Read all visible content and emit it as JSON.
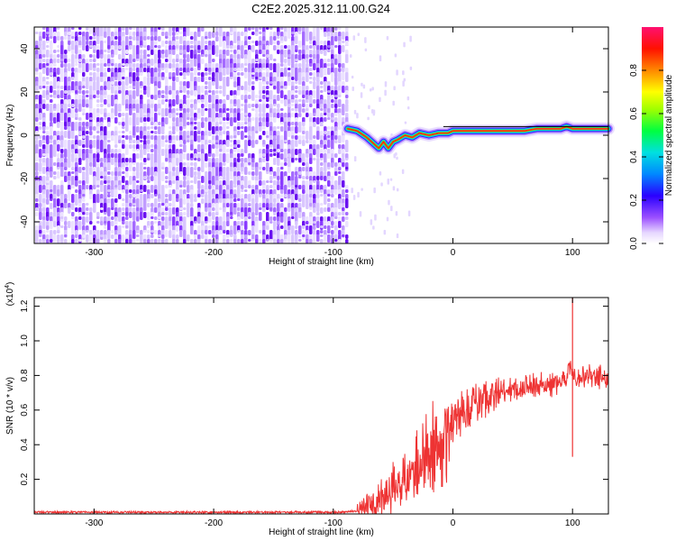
{
  "figure_title": "C2E2.2025.312.11.00.G24",
  "chart_data": [
    {
      "type": "heatmap",
      "title": "C2E2.2025.312.11.00.G24",
      "xlabel": "Height of straight line (km)",
      "ylabel": "Frequency (Hz)",
      "xlim": [
        -350,
        130
      ],
      "ylim": [
        -50,
        50
      ],
      "xticks": [
        -300,
        -200,
        -100,
        0,
        100
      ],
      "yticks": [
        -40,
        -20,
        0,
        20,
        40
      ],
      "noise_region": {
        "x_from": -350,
        "x_to": -88,
        "description_level": "random"
      },
      "signal_track": {
        "x": [
          -88,
          -80,
          -72,
          -66,
          -62,
          -58,
          -54,
          -50,
          -46,
          -40,
          -34,
          -28,
          -20,
          -12,
          -4,
          0,
          10,
          20,
          30,
          40,
          50,
          60,
          70,
          80,
          90,
          95,
          100,
          110,
          120,
          130
        ],
        "y": [
          3,
          2,
          -1,
          -4,
          -6,
          -3,
          -6,
          -3,
          -2,
          0,
          -1,
          1,
          0,
          1,
          1,
          2,
          2,
          2,
          2,
          2,
          2,
          2,
          3,
          3,
          3,
          4,
          3,
          3,
          3,
          3
        ]
      },
      "colorbar": {
        "label": "Normalized spectral amplitude",
        "range": [
          0,
          1
        ],
        "ticks": [
          0.0,
          0.2,
          0.4,
          0.6,
          0.8
        ],
        "tick_labels": [
          "0.0",
          "0.2",
          "0.4",
          "0.6",
          "0.8"
        ]
      }
    },
    {
      "type": "line",
      "xlabel": "Height of straight line (km)",
      "ylabel": "SNR (10 * v/v)",
      "scale_label": "(x10",
      "scale_exponent": "4",
      "scale_suffix": ")",
      "xlim": [
        -350,
        130
      ],
      "ylim": [
        0,
        1.25
      ],
      "xticks": [
        -300,
        -200,
        -100,
        0,
        100
      ],
      "yticks": [
        0.2,
        0.4,
        0.6,
        0.8,
        1.0,
        1.2
      ],
      "ytick_labels": [
        "0.2",
        "0.4",
        "0.6",
        "0.8",
        "1.0",
        "1.2"
      ],
      "color": "#ee3333",
      "series": [
        {
          "name": "SNR",
          "x": [
            -350,
            -300,
            -250,
            -200,
            -150,
            -110,
            -100,
            -90,
            -80,
            -70,
            -60,
            -50,
            -40,
            -30,
            -20,
            -10,
            0,
            10,
            20,
            30,
            40,
            50,
            60,
            70,
            80,
            90,
            95,
            98,
            100,
            102,
            105,
            110,
            115,
            120,
            125,
            130
          ],
          "y": [
            0.01,
            0.01,
            0.01,
            0.01,
            0.01,
            0.01,
            0.01,
            0.01,
            0.02,
            0.04,
            0.08,
            0.14,
            0.22,
            0.3,
            0.38,
            0.46,
            0.54,
            0.6,
            0.64,
            0.68,
            0.7,
            0.72,
            0.73,
            0.74,
            0.75,
            0.76,
            0.78,
            0.85,
            0.82,
            0.8,
            0.79,
            0.8,
            0.81,
            0.79,
            0.79,
            0.78
          ],
          "spike": {
            "x": 100,
            "y_top": 1.25,
            "y_bottom": 0.33
          }
        }
      ]
    }
  ]
}
